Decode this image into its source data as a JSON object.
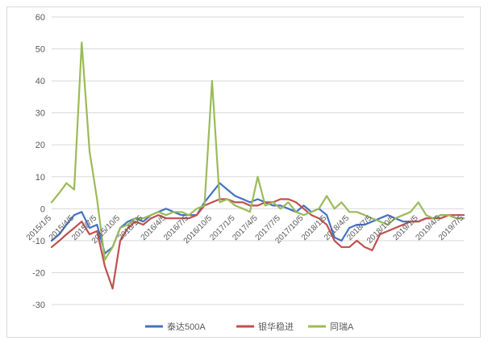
{
  "chart_data": {
    "type": "line",
    "xlabel": "",
    "ylabel": "",
    "ylim": [
      -30,
      60
    ],
    "yticks": [
      60,
      50,
      40,
      30,
      20,
      10,
      0,
      -10,
      -20,
      -30
    ],
    "tick_labels": [
      "2015/1/5",
      "2015/4/5",
      "2015/7/5",
      "2015/10/5",
      "2016/1/5",
      "2016/4/5",
      "2016/7/5",
      "2016/10/5",
      "2017/1/5",
      "2017/4/5",
      "2017/7/5",
      "2017/10/5",
      "2018/1/5",
      "2018/4/5",
      "2018/7/5",
      "2018/10/5",
      "2019/1/5",
      "2019/4/5",
      "2019/7/5"
    ],
    "gridlines": true,
    "legend_position": "bottom",
    "x": [
      "2015/1/5",
      "2015/2/5",
      "2015/3/5",
      "2015/4/5",
      "2015/5/5",
      "2015/6/5",
      "2015/7/5",
      "2015/8/5",
      "2015/9/5",
      "2015/10/5",
      "2015/11/5",
      "2015/12/5",
      "2016/1/5",
      "2016/2/5",
      "2016/3/5",
      "2016/4/5",
      "2016/5/5",
      "2016/6/5",
      "2016/7/5",
      "2016/8/5",
      "2016/9/5",
      "2016/10/5",
      "2016/11/5",
      "2016/12/5",
      "2017/1/5",
      "2017/2/5",
      "2017/3/5",
      "2017/4/5",
      "2017/5/5",
      "2017/6/5",
      "2017/7/5",
      "2017/8/5",
      "2017/9/5",
      "2017/10/5",
      "2017/11/5",
      "2017/12/5",
      "2018/1/5",
      "2018/2/5",
      "2018/3/5",
      "2018/4/5",
      "2018/5/5",
      "2018/6/5",
      "2018/7/5",
      "2018/8/5",
      "2018/9/5",
      "2018/10/5",
      "2018/11/5",
      "2018/12/5",
      "2019/1/5",
      "2019/2/5",
      "2019/3/5",
      "2019/4/5",
      "2019/5/5",
      "2019/6/5",
      "2019/7/5"
    ],
    "series": [
      {
        "name": "泰达500A",
        "color": "#4472C4",
        "values": [
          -10,
          -8,
          -5,
          -2,
          -1,
          -6,
          -5,
          -14,
          -12,
          -6,
          -4,
          -3,
          -4,
          -2,
          -1,
          0,
          -1,
          -2,
          -2,
          -2,
          2,
          5,
          8,
          6,
          4,
          3,
          2,
          3,
          2,
          1,
          1,
          0,
          -1,
          1,
          -1,
          0,
          -2,
          -9,
          -10,
          -6,
          -5,
          -5,
          -4,
          -3,
          -2,
          -3,
          -4,
          -4,
          -4,
          -3,
          -3,
          -2,
          -2,
          -3,
          -3
        ]
      },
      {
        "name": "银华稳进",
        "color": "#C0504D",
        "values": [
          -12,
          -10,
          -8,
          -6,
          -4,
          -8,
          -7,
          -18,
          -25,
          -10,
          -6,
          -4,
          -5,
          -3,
          -2,
          -3,
          -3,
          -3,
          -3,
          -2,
          1,
          2,
          3,
          3,
          2,
          2,
          1,
          1,
          2,
          2,
          3,
          3,
          2,
          0,
          -2,
          -3,
          -5,
          -10,
          -12,
          -12,
          -10,
          -12,
          -13,
          -8,
          -7,
          -6,
          -5,
          -4,
          -4,
          -3,
          -3,
          -3,
          -2,
          -2,
          -2
        ]
      },
      {
        "name": "同瑞A",
        "color": "#9BBB59",
        "values": [
          2,
          5,
          8,
          6,
          52,
          18,
          3,
          -16,
          -12,
          -6,
          -5,
          -3,
          -3,
          -2,
          -1,
          -2,
          -1,
          -1,
          -2,
          0,
          1,
          40,
          2,
          3,
          1,
          0,
          -1,
          10,
          1,
          2,
          0,
          2,
          -1,
          -2,
          -1,
          0,
          4,
          0,
          2,
          -1,
          -1,
          -2,
          -3,
          -4,
          -5,
          -3,
          -2,
          -1,
          2,
          -2,
          -3,
          -2,
          -2,
          -3,
          -3
        ]
      }
    ]
  }
}
